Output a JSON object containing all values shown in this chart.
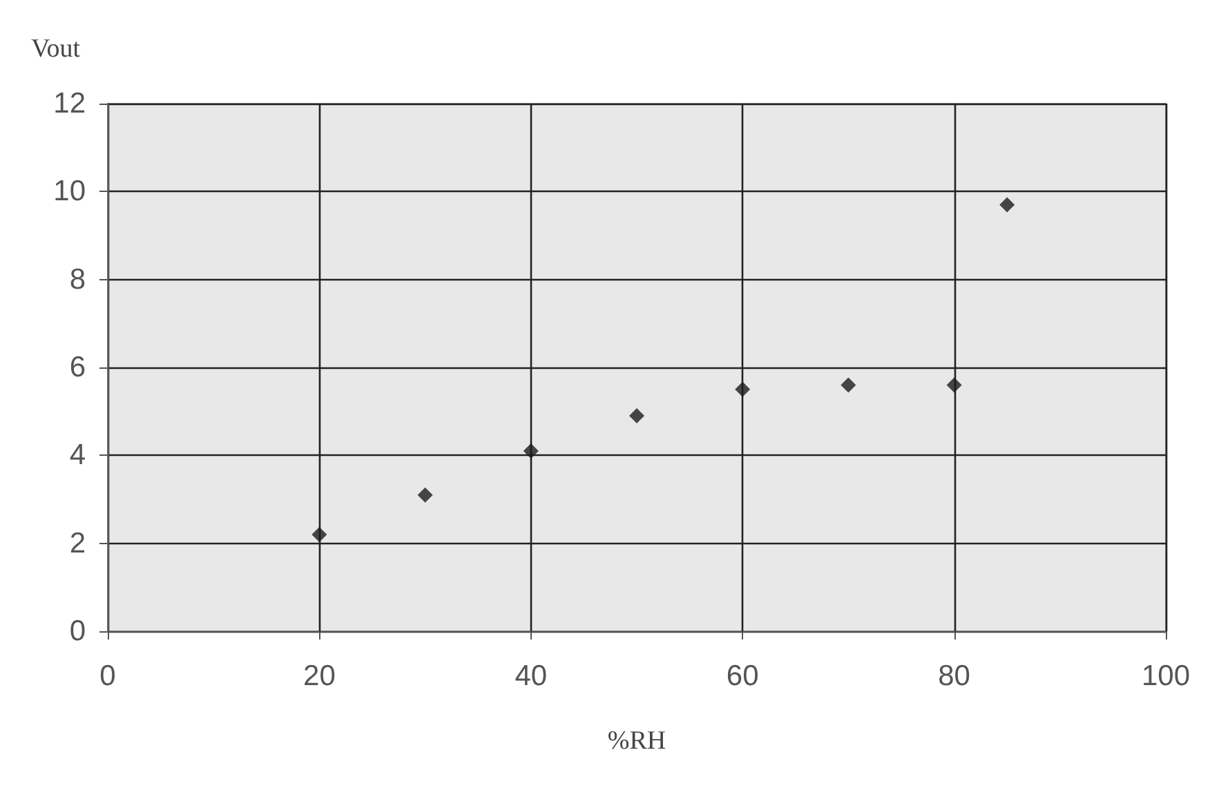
{
  "chart_data": {
    "type": "scatter",
    "xlabel": "%RH",
    "ylabel": "Vout",
    "x": [
      20,
      30,
      40,
      50,
      60,
      70,
      80,
      85
    ],
    "series": [
      {
        "color": "#1a1a1a",
        "values": [
          2.2,
          3.1,
          4.1,
          4.9,
          5.5,
          5.6,
          5.6,
          9.7
        ]
      }
    ],
    "xlim": [
      0,
      100
    ],
    "xticks": [
      0,
      20,
      40,
      60,
      80,
      100
    ],
    "ylim": [
      0,
      12
    ],
    "yticks": [
      0,
      2,
      4,
      6,
      8,
      10,
      12
    ],
    "grid": true,
    "marker": "diamond"
  }
}
